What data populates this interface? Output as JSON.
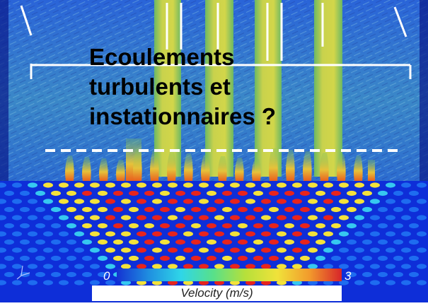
{
  "title": {
    "text": "Ecoulements\nturbulents et\ninstationnaires ?"
  },
  "colorbar": {
    "min_label": "0",
    "max_label": "3",
    "label": "Velocity (m/s)",
    "colors": [
      "#1432d2",
      "#1f8fe0",
      "#2fd6e8",
      "#58e08a",
      "#b6e03a",
      "#f0e23a",
      "#f29a2c",
      "#d7242a"
    ]
  },
  "scene": {
    "background_color": "#1a3fd6",
    "plate_color": "#0e2ed8",
    "description_colors": {
      "jet": "#c8d24a",
      "hole_fast": "#e8241c",
      "hole_mid": "#f4e23a",
      "hole_slow": "#36c8f0",
      "hole_idle": "#1e6cf0"
    }
  }
}
